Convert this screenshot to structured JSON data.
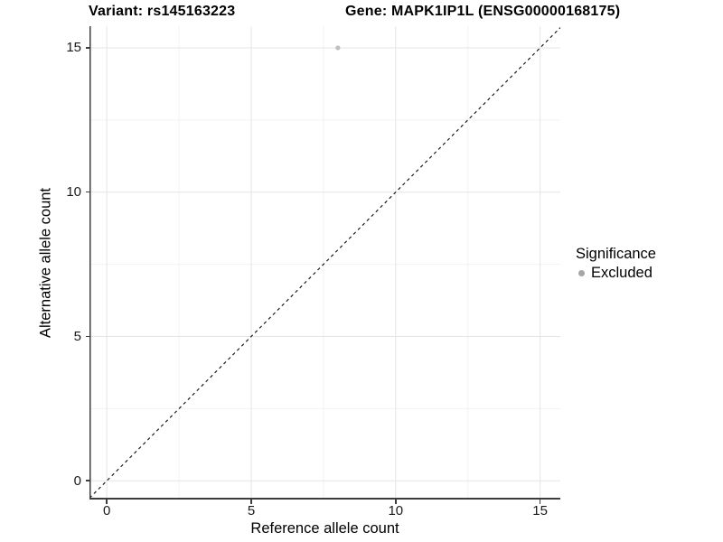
{
  "title": {
    "variant": "Variant: rs145163223",
    "gene": "Gene: MAPK1IP1L (ENSG00000168175)"
  },
  "axes": {
    "x": {
      "label": "Reference allele count",
      "ticks": [
        "0",
        "5",
        "10",
        "15"
      ]
    },
    "y": {
      "label": "Alternative allele count",
      "ticks": [
        "0",
        "5",
        "10",
        "15"
      ]
    }
  },
  "legend": {
    "title": "Significance",
    "items": [
      {
        "label": "Excluded",
        "color": "#a6a6a6"
      }
    ]
  },
  "colors": {
    "background": "#ffffff",
    "grid_major": "#e5e5e5",
    "grid_minor": "#f2f2f2",
    "axis_line": "#3d3d3d",
    "tick_text": "#1a1a1a",
    "title_text": "#000000",
    "reference_line": "#1a1a1a",
    "point": "#bfbfbf"
  },
  "chart_data": {
    "type": "scatter",
    "title": "Variant: rs145163223   Gene: MAPK1IP1L (ENSG00000168175)",
    "xlabel": "Reference allele count",
    "ylabel": "Alternative allele count",
    "xlim": [
      -0.6,
      15.7
    ],
    "ylim": [
      -0.65,
      15.75
    ],
    "x_ticks": [
      0,
      5,
      10,
      15
    ],
    "y_ticks": [
      0,
      5,
      10,
      15
    ],
    "x_minor_ticks": [
      2.5,
      7.5,
      12.5
    ],
    "y_minor_ticks": [
      2.5,
      7.5,
      12.5
    ],
    "grid": "major+minor",
    "legend_position": "right",
    "series": [
      {
        "name": "Excluded",
        "color": "#bfbfbf",
        "points": [
          {
            "x": 8,
            "y": 15
          }
        ]
      }
    ],
    "reference_line": {
      "type": "identity (y = x)",
      "style": "dashed",
      "from": [
        -0.6,
        -0.6
      ],
      "to": [
        15.7,
        15.7
      ]
    }
  }
}
